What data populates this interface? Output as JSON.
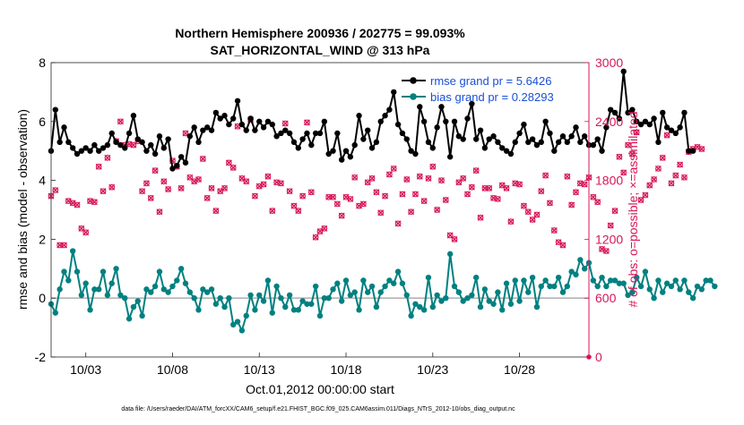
{
  "chart_data": {
    "type": "line",
    "title": "Northern Hemisphere 200936 / 202775 = 99.093%",
    "subtitle": "SAT_HORIZONTAL_WIND @ 313 hPa",
    "xlabel": "Oct.01,2012 00:00:00 start",
    "ylabel_left": "rmse and bias (model - observation)",
    "ylabel_right": "# of obs: o=possible; ×=assimilated",
    "footnote": "data file: /Users/raeder/DAI/ATM_forcXX/CAM6_setup/f.e21.FHIST_BGC.f09_025.CAM6assim.011/Diags_NTrS_2012-10/obs_diag_output.nc",
    "x_ticks": [
      "10/03",
      "10/08",
      "10/13",
      "10/18",
      "10/23",
      "10/28"
    ],
    "x_tick_values": [
      3,
      8,
      13,
      18,
      23,
      28
    ],
    "xlim": [
      1,
      32
    ],
    "ylim_left": [
      -2,
      8
    ],
    "y_ticks_left": [
      "-2",
      "0",
      "2",
      "4",
      "6",
      "8"
    ],
    "ylim_right": [
      0,
      3000
    ],
    "y_ticks_right": [
      "0",
      "600",
      "1200",
      "1800",
      "2400",
      "3000"
    ],
    "legend_position": "top-right",
    "colors": {
      "rmse": "#000000",
      "bias": "#008080",
      "obs": "#d6175a",
      "legend_text": "#1a4fd6",
      "zero_line": "#b3b3b3"
    },
    "series": [
      {
        "name": "rmse grand pr = 5.6426",
        "axis": "left",
        "x_start": 1.0,
        "x_step": 0.25,
        "values": [
          5.0,
          6.4,
          5.3,
          5.8,
          5.3,
          5.1,
          4.9,
          5.0,
          5.1,
          5.0,
          5.2,
          5.0,
          5.1,
          5.2,
          5.6,
          5.3,
          5.2,
          5.1,
          5.6,
          6.2,
          5.4,
          5.3,
          5.0,
          5.2,
          4.9,
          5.5,
          5.1,
          5.4,
          4.4,
          4.5,
          4.8,
          4.6,
          5.5,
          5.8,
          5.3,
          5.7,
          5.8,
          5.7,
          6.3,
          6.1,
          6.2,
          5.9,
          6.1,
          6.7,
          5.9,
          5.7,
          6.1,
          5.7,
          6.0,
          5.8,
          6.0,
          5.9,
          5.5,
          5.6,
          5.7,
          5.6,
          5.3,
          5.1,
          5.4,
          5.6,
          5.2,
          5.6,
          5.6,
          6.0,
          4.9,
          5.0,
          5.6,
          4.7,
          5.0,
          4.8,
          5.2,
          6.2,
          5.4,
          5.7,
          5.1,
          5.3,
          6.0,
          6.2,
          6.4,
          7.0,
          5.9,
          5.6,
          5.4,
          5.0,
          4.9,
          6.5,
          6.0,
          5.3,
          5.1,
          5.8,
          6.5,
          6.0,
          4.8,
          6.0,
          5.5,
          5.4,
          6.1,
          6.6,
          5.4,
          5.7,
          5.1,
          5.4,
          5.5,
          5.3,
          5.1,
          5.0,
          4.9,
          5.3,
          5.6,
          5.9,
          5.3,
          5.4,
          5.2,
          5.3,
          6.0,
          5.6,
          5.0,
          5.3,
          5.5,
          5.3,
          5.5,
          5.8,
          5.3,
          5.5,
          5.2,
          5.2,
          5.4,
          5.0,
          5.8,
          6.4,
          6.3,
          6.1,
          7.7,
          6.3,
          6.4,
          6.0,
          5.9,
          6.0,
          5.9,
          6.1,
          5.3,
          6.3,
          5.8,
          5.7,
          5.6,
          5.8,
          6.3,
          5.0,
          5.0
        ]
      },
      {
        "name": "bias grand pr = 0.28293",
        "axis": "left",
        "x_start": 1.0,
        "x_step": 0.25,
        "values": [
          -0.2,
          -0.5,
          0.3,
          0.9,
          0.6,
          1.6,
          0.9,
          0.1,
          0.5,
          -0.4,
          0.3,
          0.3,
          0.9,
          0.1,
          0.5,
          1.0,
          0.1,
          0.0,
          -0.7,
          -0.3,
          -0.1,
          -0.6,
          0.3,
          0.2,
          0.4,
          0.9,
          0.3,
          0.2,
          0.4,
          0.6,
          1.0,
          0.5,
          0.2,
          0.0,
          -0.4,
          0.3,
          0.2,
          0.3,
          -0.2,
          0.0,
          -0.3,
          0.0,
          -0.9,
          -0.8,
          -1.1,
          -0.6,
          0.1,
          -0.4,
          0.1,
          -0.1,
          0.6,
          -0.5,
          0.4,
          0.0,
          -0.3,
          0.1,
          -0.4,
          -0.4,
          -0.1,
          -0.2,
          -0.2,
          0.4,
          -0.6,
          0.0,
          0.0,
          0.3,
          0.5,
          -0.1,
          0.6,
          0.1,
          0.2,
          -0.4,
          0.6,
          0.2,
          0.4,
          -0.3,
          0.2,
          0.4,
          0.6,
          0.5,
          0.9,
          0.5,
          0.1,
          -0.6,
          -0.2,
          -0.3,
          -0.4,
          0.7,
          -0.3,
          0.1,
          -0.1,
          0.0,
          1.5,
          0.4,
          0.2,
          -0.1,
          0.0,
          0.1,
          0.7,
          -0.3,
          0.3,
          -0.1,
          -0.2,
          0.2,
          -0.4,
          0.5,
          -0.2,
          0.6,
          -0.1,
          0.6,
          0.2,
          0.7,
          -0.3,
          0.4,
          0.6,
          0.4,
          0.4,
          0.7,
          0.2,
          0.4,
          0.9,
          0.8,
          1.3,
          1.0,
          1.2,
          0.6,
          0.4,
          0.7,
          0.4,
          0.6,
          0.6,
          0.5,
          0.5,
          0.1,
          0.2,
          0.7,
          0.4,
          0.9,
          0.3,
          0.0,
          0.6,
          0.2,
          0.5,
          0.4,
          0.6,
          0.3,
          0.6,
          0.2,
          0.0,
          0.4,
          0.3,
          0.6,
          0.6,
          0.4
        ]
      },
      {
        "name": "assimilated",
        "axis": "right",
        "marker": "x",
        "x_start": 1.0,
        "x_step": 0.25,
        "values": [
          1640,
          1700,
          1140,
          1140,
          1590,
          1570,
          1550,
          1310,
          1270,
          1590,
          1580,
          1940,
          1690,
          2030,
          1730,
          2200,
          2400,
          2160,
          2170,
          2160,
          2200,
          1690,
          1770,
          1620,
          1900,
          1480,
          1790,
          1710,
          2000,
          1940,
          1720,
          2280,
          1830,
          1790,
          1810,
          2020,
          1620,
          1720,
          1490,
          1690,
          1720,
          1980,
          1930,
          2350,
          1820,
          1790,
          2420,
          1640,
          1740,
          1760,
          1840,
          1490,
          1780,
          1770,
          2380,
          1690,
          1540,
          1490,
          1640,
          2390,
          1680,
          1220,
          1280,
          1310,
          1630,
          1630,
          1560,
          1440,
          1630,
          1610,
          1830,
          1540,
          1560,
          1780,
          1820,
          1680,
          1470,
          1640,
          1860,
          1920,
          1360,
          1660,
          1810,
          1480,
          1660,
          1840,
          1590,
          1820,
          1940,
          1500,
          1800,
          1600,
          1240,
          1200,
          1780,
          1820,
          1660,
          1730,
          1900,
          1420,
          1720,
          1720,
          1620,
          1610,
          1750,
          1720,
          1380,
          1770,
          1760,
          1540,
          1480,
          1400,
          1450,
          1690,
          1850,
          1570,
          1290,
          1170,
          1140,
          1840,
          1550,
          1680,
          1770,
          1760,
          1830,
          1630,
          1580,
          1100,
          1080,
          1340,
          1490,
          2040,
          1880,
          2160,
          2070,
          2290,
          1600,
          1650,
          1750,
          1810,
          1920,
          2030,
          2260,
          1770,
          1850,
          1960,
          1830,
          2090,
          2120,
          2140,
          2120
        ]
      },
      {
        "name": "possible",
        "axis": "right",
        "marker": "o",
        "x_start": 1.0,
        "x_step": 0.25,
        "values": [
          1640,
          1700,
          1140,
          1140,
          1590,
          1570,
          1550,
          1310,
          1270,
          1590,
          1580,
          1940,
          1690,
          2030,
          1730,
          2200,
          2400,
          2160,
          2170,
          2160,
          2200,
          1690,
          1770,
          1620,
          1900,
          1480,
          1790,
          1710,
          2000,
          1940,
          1720,
          2280,
          1830,
          1790,
          1810,
          2020,
          1620,
          1720,
          1490,
          1690,
          1720,
          1980,
          1930,
          2350,
          1820,
          1790,
          2420,
          1640,
          1740,
          1760,
          1840,
          1490,
          1780,
          1770,
          2380,
          1690,
          1540,
          1490,
          1640,
          2390,
          1680,
          1220,
          1280,
          1310,
          1630,
          1630,
          1560,
          1440,
          1630,
          1610,
          1830,
          1540,
          1560,
          1780,
          1820,
          1680,
          1470,
          1640,
          1860,
          1920,
          1360,
          1660,
          1810,
          1480,
          1660,
          1840,
          1590,
          1820,
          1940,
          1500,
          1800,
          1600,
          1240,
          1200,
          1780,
          1820,
          1660,
          1730,
          1900,
          1420,
          1720,
          1720,
          1620,
          1610,
          1750,
          1720,
          1380,
          1770,
          1760,
          1540,
          1480,
          1400,
          1450,
          1690,
          1850,
          1570,
          1290,
          1170,
          1140,
          1840,
          1550,
          1680,
          1770,
          1760,
          1830,
          1630,
          1580,
          1100,
          1080,
          1340,
          1490,
          2040,
          1880,
          2160,
          2070,
          2290,
          1600,
          1650,
          1750,
          1810,
          1920,
          2030,
          2260,
          1770,
          1850,
          1960,
          1830,
          2090,
          2120,
          2140,
          2120
        ]
      }
    ]
  }
}
